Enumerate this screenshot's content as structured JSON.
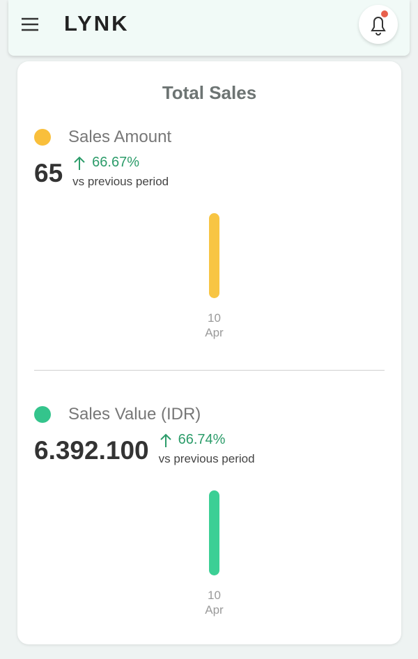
{
  "header": {
    "logo": "LYNK"
  },
  "card": {
    "title": "Total Sales",
    "sections": [
      {
        "name": "Sales Amount",
        "dot_color": "#f9bf3b",
        "change": "66.67%",
        "caption": "vs previous period",
        "chart": {
          "type": "bar",
          "categories": [
            "10 Apr"
          ],
          "values": [
            65
          ],
          "value_labels": [
            "65"
          ],
          "color": "#f8c543"
        }
      },
      {
        "name": "Sales Value (IDR)",
        "dot_color": "#34c48c",
        "change": "66.74%",
        "caption": "vs previous period",
        "chart": {
          "type": "bar",
          "categories": [
            "10 Apr"
          ],
          "values": [
            6392100
          ],
          "value_labels": [
            "6.392.100"
          ],
          "color": "#3ccf95"
        }
      }
    ]
  }
}
